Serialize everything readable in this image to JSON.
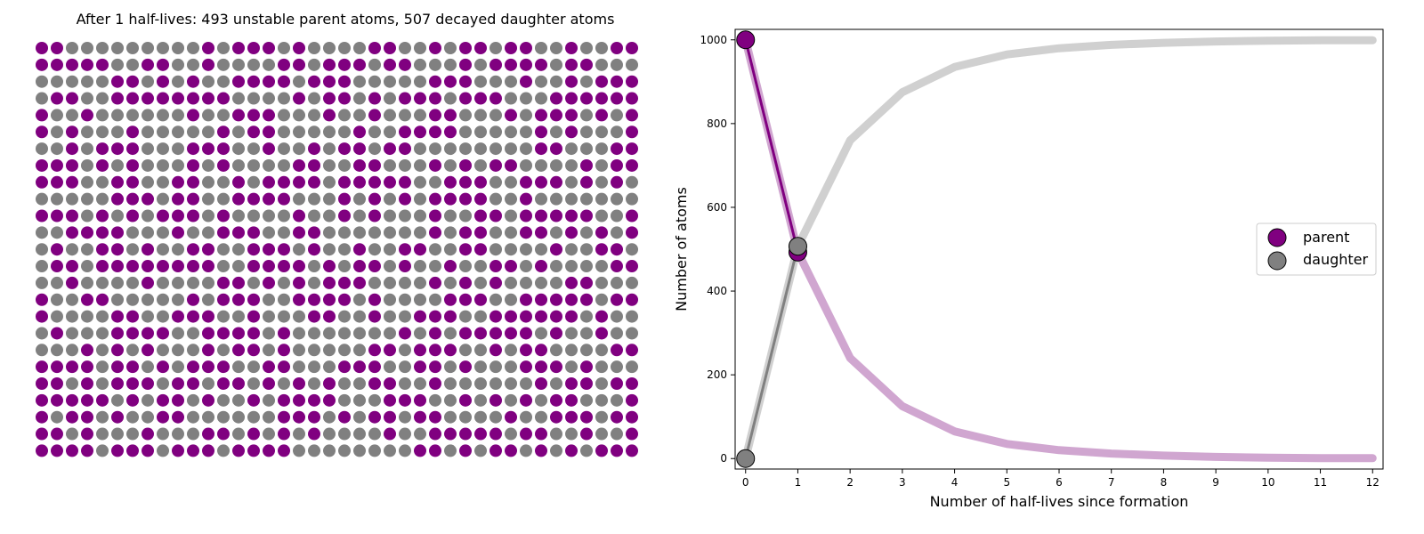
{
  "colors": {
    "parent": "#800080",
    "daughter": "#808080",
    "parent_light": "#c896c8",
    "daughter_light": "#c8c8c8"
  },
  "chart_data": [
    {
      "type": "dot-grid",
      "title": "After 1 half-lives: 493 unstable parent atoms, 507 decayed daughter atoms",
      "rows": 25,
      "cols": 40,
      "parent_count": 493,
      "daughter_count": 507
    },
    {
      "type": "line",
      "xlabel": "Number of half-lives since formation",
      "ylabel": "Number of atoms",
      "xlim": [
        -0.2,
        12.2
      ],
      "ylim": [
        -25,
        1025
      ],
      "xticks": [
        0,
        1,
        2,
        3,
        4,
        5,
        6,
        7,
        8,
        9,
        10,
        11,
        12
      ],
      "yticks": [
        0,
        200,
        400,
        600,
        800,
        1000
      ],
      "legend_position": "center-right",
      "current_halflife": 1,
      "x": [
        0,
        1,
        2,
        3,
        4,
        5,
        6,
        7,
        8,
        9,
        10,
        11,
        12
      ],
      "series": [
        {
          "name": "parent",
          "values": [
            1000,
            493,
            240,
            125,
            65,
            35,
            20,
            12,
            7,
            4,
            2,
            1,
            1
          ],
          "current": 493
        },
        {
          "name": "daughter",
          "values": [
            0,
            507,
            760,
            875,
            935,
            965,
            980,
            988,
            993,
            996,
            998,
            999,
            999
          ],
          "current": 507
        }
      ]
    }
  ]
}
